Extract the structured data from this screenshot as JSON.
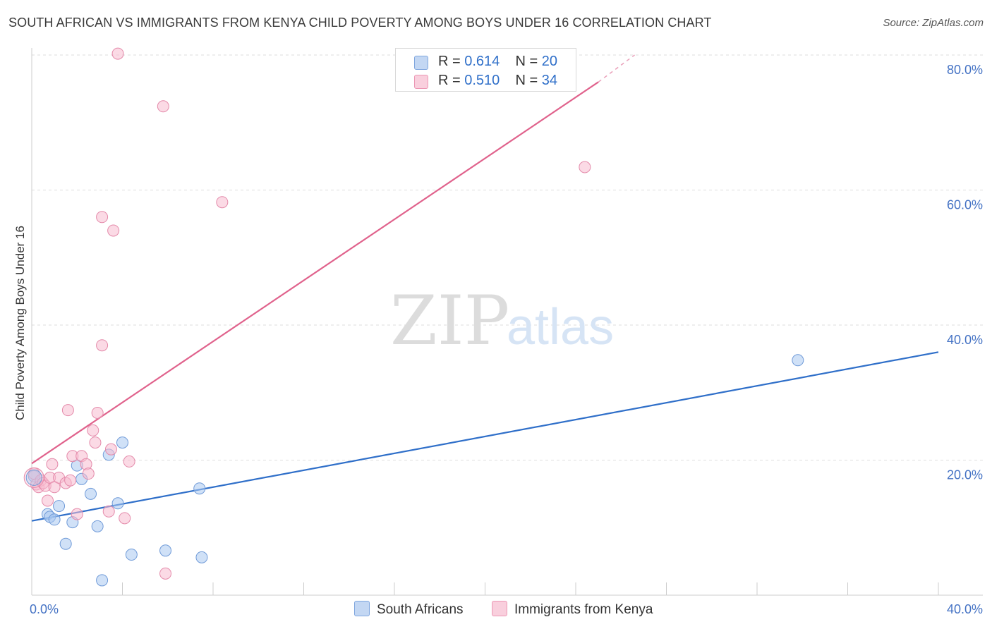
{
  "header": {
    "title": "SOUTH AFRICAN VS IMMIGRANTS FROM KENYA CHILD POVERTY AMONG BOYS UNDER 16 CORRELATION CHART",
    "source": "Source: ZipAtlas.com"
  },
  "legend_box": {
    "rows": [
      {
        "r_label": "R = ",
        "r_value": "0.614",
        "n_label": "N = ",
        "n_value": "20"
      },
      {
        "r_label": "R = ",
        "r_value": "0.510",
        "n_label": "N = ",
        "n_value": "34"
      }
    ]
  },
  "bottom_legend": {
    "series1": "South Africans",
    "series2": "Immigrants from Kenya"
  },
  "watermark": {
    "zip": "ZIP",
    "atlas": "atlas"
  },
  "colors": {
    "blue_fill": "#a9c8f0",
    "blue_line": "#2f6fc9",
    "pink_fill": "#f7bcd0",
    "pink_line": "#e0628c",
    "tick_text": "#4472c4",
    "grid": "#dddddd"
  },
  "chart_data": {
    "type": "scatter",
    "title": "SOUTH AFRICAN VS IMMIGRANTS FROM KENYA CHILD POVERTY AMONG BOYS UNDER 16 CORRELATION CHART",
    "xlabel": "",
    "ylabel": "Child Poverty Among Boys Under 16",
    "xlim": [
      0,
      40
    ],
    "ylim": [
      0,
      80
    ],
    "x_tick_labels": [
      "0.0%",
      "40.0%"
    ],
    "y_ticks": [
      20,
      40,
      60,
      80
    ],
    "y_tick_labels": [
      "20.0%",
      "40.0%",
      "60.0%",
      "80.0%"
    ],
    "grid": true,
    "legend": "top-center",
    "series": [
      {
        "name": "South Africans",
        "r": 0.614,
        "n": 20,
        "points": [
          [
            0.1,
            17.6
          ],
          [
            0.7,
            12.0
          ],
          [
            0.8,
            11.6
          ],
          [
            1.0,
            11.2
          ],
          [
            1.2,
            13.2
          ],
          [
            1.5,
            7.6
          ],
          [
            1.8,
            10.8
          ],
          [
            2.0,
            19.2
          ],
          [
            2.2,
            17.2
          ],
          [
            2.6,
            15.0
          ],
          [
            2.9,
            10.2
          ],
          [
            3.1,
            2.2
          ],
          [
            3.4,
            20.8
          ],
          [
            3.8,
            13.6
          ],
          [
            4.0,
            22.6
          ],
          [
            4.4,
            6.0
          ],
          [
            5.9,
            6.6
          ],
          [
            7.4,
            15.8
          ],
          [
            7.5,
            5.6
          ],
          [
            33.8,
            34.8
          ]
        ],
        "trend": {
          "x1": 0,
          "y1": 11.0,
          "x2": 40,
          "y2": 36.0
        }
      },
      {
        "name": "Immigrants from Kenya",
        "r": 0.51,
        "n": 34,
        "points": [
          [
            0.1,
            18.0
          ],
          [
            0.2,
            16.4
          ],
          [
            0.3,
            16.0
          ],
          [
            0.4,
            17.0
          ],
          [
            0.5,
            16.6
          ],
          [
            0.6,
            16.2
          ],
          [
            0.7,
            14.0
          ],
          [
            0.8,
            17.4
          ],
          [
            0.9,
            19.4
          ],
          [
            1.0,
            16.0
          ],
          [
            1.2,
            17.4
          ],
          [
            1.5,
            16.6
          ],
          [
            1.6,
            27.4
          ],
          [
            1.7,
            17.0
          ],
          [
            1.8,
            20.6
          ],
          [
            2.0,
            12.0
          ],
          [
            2.2,
            20.6
          ],
          [
            2.4,
            19.4
          ],
          [
            2.5,
            18.0
          ],
          [
            2.7,
            24.4
          ],
          [
            2.8,
            22.6
          ],
          [
            2.9,
            27.0
          ],
          [
            3.1,
            37.0
          ],
          [
            3.1,
            56.0
          ],
          [
            3.4,
            12.4
          ],
          [
            3.5,
            21.6
          ],
          [
            3.6,
            54.0
          ],
          [
            3.8,
            80.2
          ],
          [
            4.1,
            11.4
          ],
          [
            4.3,
            19.8
          ],
          [
            5.8,
            72.4
          ],
          [
            5.9,
            3.2
          ],
          [
            8.4,
            58.2
          ],
          [
            24.4,
            63.4
          ]
        ],
        "trend": {
          "x1": 0,
          "y1": 19.5,
          "x2": 25,
          "y2": 76.0,
          "dashed_to_x": 26.6,
          "dashed_to_y": 80.0
        }
      }
    ]
  }
}
